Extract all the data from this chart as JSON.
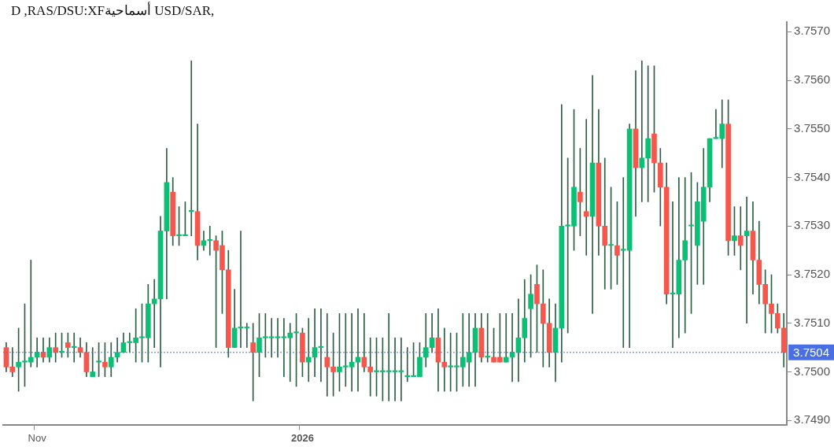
{
  "chart_data": {
    "type": "candlestick",
    "title": "D ,RAS/DSU:XFأسماحية USD/SAR,",
    "categories": [
      null,
      null,
      null,
      null,
      null,
      "Nov",
      null,
      null,
      null,
      null,
      null,
      null,
      null,
      null,
      null,
      null,
      null,
      null,
      null,
      null,
      null,
      null,
      null,
      null,
      null,
      null,
      null,
      null,
      null,
      null,
      null,
      null,
      null,
      null,
      null,
      null,
      null,
      null,
      null,
      null,
      null,
      null,
      null,
      null,
      null,
      null,
      null,
      null,
      "2026",
      null,
      null,
      null,
      null,
      null,
      null,
      null,
      null,
      null,
      null,
      null,
      null,
      null,
      null,
      null,
      null,
      null,
      null,
      null,
      null,
      null,
      null,
      null,
      null,
      null,
      null,
      null,
      null,
      null,
      null,
      null,
      null,
      null,
      null,
      null,
      null,
      null,
      null,
      null,
      null,
      null,
      null,
      null,
      null,
      null,
      null,
      null,
      null,
      null,
      null,
      null,
      null,
      null,
      null,
      null,
      null,
      null,
      null,
      null,
      null,
      null,
      null,
      null,
      null,
      null,
      null,
      null,
      null,
      null,
      null,
      null,
      null,
      null,
      null,
      null,
      null,
      null,
      null
    ],
    "ohlc": [
      [
        3.7505,
        3.7506,
        3.75,
        3.7501
      ],
      [
        3.7501,
        3.7505,
        3.7499,
        3.75
      ],
      [
        3.7501,
        3.7509,
        3.7496,
        3.7502
      ],
      [
        3.7502,
        3.7514,
        3.7497,
        3.7502
      ],
      [
        3.7502,
        3.7523,
        3.7501,
        3.7503
      ],
      [
        3.7503,
        3.7507,
        3.7501,
        3.7504
      ],
      [
        3.7504,
        3.7507,
        3.7502,
        3.7503
      ],
      [
        3.7503,
        3.7507,
        3.7502,
        3.7505
      ],
      [
        3.7505,
        3.7508,
        3.7502,
        3.7504
      ],
      [
        3.7504,
        3.7508,
        3.7503,
        3.7504
      ],
      [
        3.7506,
        3.7508,
        3.7503,
        3.7505
      ],
      [
        3.7505,
        3.7508,
        3.7502,
        3.7505
      ],
      [
        3.7505,
        3.7507,
        3.7503,
        3.7504
      ],
      [
        3.7504,
        3.7506,
        3.7499,
        3.75
      ],
      [
        3.7499,
        3.7505,
        3.7499,
        3.75
      ],
      [
        3.7502,
        3.7506,
        3.7499,
        3.7502
      ],
      [
        3.7502,
        3.7506,
        3.7499,
        3.7501
      ],
      [
        3.7501,
        3.7506,
        3.7499,
        3.7503
      ],
      [
        3.7503,
        3.7507,
        3.7502,
        3.7504
      ],
      [
        3.7504,
        3.7508,
        3.7504,
        3.7506
      ],
      [
        3.7506,
        3.7508,
        3.7504,
        3.7506
      ],
      [
        3.7506,
        3.7513,
        3.7502,
        3.7507
      ],
      [
        3.7507,
        3.7514,
        3.7502,
        3.7507
      ],
      [
        3.7507,
        3.7518,
        3.7502,
        3.7514
      ],
      [
        3.7514,
        3.7519,
        3.7505,
        3.7515
      ],
      [
        3.7515,
        3.7532,
        3.7501,
        3.7529
      ],
      [
        3.7529,
        3.7546,
        3.7515,
        3.7539
      ],
      [
        3.7537,
        3.754,
        3.7526,
        3.7528
      ],
      [
        3.7528,
        3.7534,
        3.7526,
        3.7528
      ],
      [
        3.7528,
        3.7535,
        3.7528,
        3.7528
      ],
      [
        3.7533,
        3.7564,
        3.7528,
        3.7533
      ],
      [
        3.7533,
        3.7551,
        3.7523,
        3.7526
      ],
      [
        3.7526,
        3.7529,
        3.7525,
        3.7527
      ],
      [
        3.7527,
        3.753,
        3.7524,
        3.7527
      ],
      [
        3.7527,
        3.7528,
        3.7505,
        3.7525
      ],
      [
        3.7526,
        3.7529,
        3.7512,
        3.7521
      ],
      [
        3.7521,
        3.7525,
        3.7503,
        3.7505
      ],
      [
        3.7505,
        3.7517,
        3.7505,
        3.7509
      ],
      [
        3.7509,
        3.7529,
        3.7505,
        3.7509
      ],
      [
        3.7509,
        3.751,
        3.7505,
        3.7509
      ],
      [
        3.7506,
        3.751,
        3.7494,
        3.7504
      ],
      [
        3.7504,
        3.7512,
        3.7499,
        3.7507
      ],
      [
        3.7507,
        3.7512,
        3.7503,
        3.7507
      ],
      [
        3.7507,
        3.7511,
        3.7503,
        3.7507
      ],
      [
        3.7507,
        3.7511,
        3.7503,
        3.7507
      ],
      [
        3.7507,
        3.7511,
        3.7499,
        3.7507
      ],
      [
        3.7507,
        3.751,
        3.7498,
        3.7508
      ],
      [
        3.7508,
        3.7512,
        3.7497,
        3.7508
      ],
      [
        3.7508,
        3.7509,
        3.7499,
        3.7502
      ],
      [
        3.7502,
        3.7511,
        3.7498,
        3.7503
      ],
      [
        3.7503,
        3.7513,
        3.7499,
        3.7505
      ],
      [
        3.7505,
        3.7513,
        3.7498,
        3.7505
      ],
      [
        3.7503,
        3.7512,
        3.7495,
        3.7501
      ],
      [
        3.7501,
        3.7508,
        3.7495,
        3.75
      ],
      [
        3.75,
        3.7512,
        3.7496,
        3.7501
      ],
      [
        3.7501,
        3.7512,
        3.7497,
        3.7501
      ],
      [
        3.7501,
        3.7512,
        3.7496,
        3.7502
      ],
      [
        3.7502,
        3.7513,
        3.7496,
        3.7503
      ],
      [
        3.7503,
        3.7512,
        3.75,
        3.7501
      ],
      [
        3.7501,
        3.7507,
        3.7495,
        3.75
      ],
      [
        3.75,
        3.7507,
        3.7495,
        3.75
      ],
      [
        3.75,
        3.7507,
        3.7494,
        3.75
      ],
      [
        3.75,
        3.7512,
        3.7494,
        3.75
      ],
      [
        3.75,
        3.7507,
        3.7494,
        3.75
      ],
      [
        3.75,
        3.7507,
        3.7494,
        3.75
      ],
      [
        3.7499,
        3.7505,
        3.7498,
        3.7499
      ],
      [
        3.7499,
        3.7506,
        3.7499,
        3.7499
      ],
      [
        3.7499,
        3.7506,
        3.7499,
        3.7503
      ],
      [
        3.7503,
        3.7512,
        3.7501,
        3.7505
      ],
      [
        3.7505,
        3.7512,
        3.7504,
        3.7507
      ],
      [
        3.7507,
        3.7513,
        3.7496,
        3.7502
      ],
      [
        3.7502,
        3.7509,
        3.7496,
        3.7501
      ],
      [
        3.7501,
        3.7508,
        3.7496,
        3.7501
      ],
      [
        3.7501,
        3.7508,
        3.7496,
        3.7501
      ],
      [
        3.7501,
        3.7512,
        3.7497,
        3.7503
      ],
      [
        3.7502,
        3.7512,
        3.7497,
        3.7504
      ],
      [
        3.7504,
        3.7512,
        3.7497,
        3.7509
      ],
      [
        3.7509,
        3.7512,
        3.7502,
        3.7503
      ],
      [
        3.7503,
        3.7512,
        3.7502,
        3.7503
      ],
      [
        3.7503,
        3.7509,
        3.7502,
        3.7502
      ],
      [
        3.7503,
        3.7512,
        3.7502,
        3.7502
      ],
      [
        3.7502,
        3.7512,
        3.7502,
        3.7503
      ],
      [
        3.7503,
        3.7512,
        3.7498,
        3.7504
      ],
      [
        3.7504,
        3.7515,
        3.7498,
        3.7507
      ],
      [
        3.7507,
        3.7519,
        3.7502,
        3.7511
      ],
      [
        3.7513,
        3.752,
        3.7503,
        3.7516
      ],
      [
        3.7518,
        3.7522,
        3.7504,
        3.7514
      ],
      [
        3.7514,
        3.7521,
        3.7501,
        3.751
      ],
      [
        3.751,
        3.7515,
        3.7501,
        3.7504
      ],
      [
        3.7504,
        3.7514,
        3.7498,
        3.7509
      ],
      [
        3.7509,
        3.7555,
        3.7502,
        3.753
      ],
      [
        3.753,
        3.7544,
        3.7508,
        3.753
      ],
      [
        3.753,
        3.7554,
        3.7525,
        3.7538
      ],
      [
        3.7537,
        3.7546,
        3.7528,
        3.7535
      ],
      [
        3.7533,
        3.7552,
        3.7524,
        3.7532
      ],
      [
        3.7532,
        3.7561,
        3.7512,
        3.7543
      ],
      [
        3.7543,
        3.7554,
        3.7524,
        3.753
      ],
      [
        3.753,
        3.7544,
        3.7517,
        3.7526
      ],
      [
        3.7526,
        3.7538,
        3.7517,
        3.7526
      ],
      [
        3.7526,
        3.7535,
        3.7518,
        3.7524
      ],
      [
        3.7525,
        3.754,
        3.7505,
        3.7525
      ],
      [
        3.7525,
        3.7551,
        3.7505,
        3.755
      ],
      [
        3.755,
        3.7562,
        3.7532,
        3.7542
      ],
      [
        3.7542,
        3.7564,
        3.7535,
        3.7544
      ],
      [
        3.7544,
        3.7563,
        3.7535,
        3.7548
      ],
      [
        3.7549,
        3.7563,
        3.7537,
        3.7543
      ],
      [
        3.7543,
        3.7546,
        3.753,
        3.7538
      ],
      [
        3.7538,
        3.7543,
        3.7514,
        3.7516
      ],
      [
        3.7516,
        3.7535,
        3.7505,
        3.7516
      ],
      [
        3.7516,
        3.754,
        3.7507,
        3.7523
      ],
      [
        3.7523,
        3.754,
        3.7508,
        3.7527
      ],
      [
        3.753,
        3.7541,
        3.7512,
        3.753
      ],
      [
        3.7526,
        3.7539,
        3.7518,
        3.7535
      ],
      [
        3.7531,
        3.7546,
        3.7518,
        3.7538
      ],
      [
        3.7538,
        3.7548,
        3.7535,
        3.7548
      ],
      [
        3.7548,
        3.7554,
        3.7548,
        3.7548
      ],
      [
        3.7548,
        3.7556,
        3.7542,
        3.7551
      ],
      [
        3.7551,
        3.7556,
        3.7524,
        3.7527
      ],
      [
        3.7527,
        3.7534,
        3.7524,
        3.7528
      ],
      [
        3.7528,
        3.7534,
        3.7521,
        3.7526
      ],
      [
        3.7528,
        3.7536,
        3.751,
        3.7529
      ],
      [
        3.7529,
        3.7535,
        3.7516,
        3.7523
      ],
      [
        3.7523,
        3.7531,
        3.7514,
        3.7518
      ],
      [
        3.7518,
        3.7521,
        3.7508,
        3.7514
      ],
      [
        3.7514,
        3.752,
        3.7508,
        3.7512
      ],
      [
        3.7512,
        3.7514,
        3.7508,
        3.7509
      ],
      [
        3.7509,
        3.7512,
        3.7501,
        3.7504
      ]
    ],
    "colors": [
      "#f6574d",
      "#f6574d",
      "#0bbf75",
      "#0bbf75",
      "#0bbf75",
      "#0bbf75",
      "#f6574d",
      "#0bbf75",
      "#f6574d",
      "#0bbf75",
      "#f6574d",
      "#0bbf75",
      "#f6574d",
      "#f6574d",
      "#0bbf75",
      "#0bbf75",
      "#f6574d",
      "#0bbf75",
      "#0bbf75",
      "#0bbf75",
      "#0bbf75",
      "#0bbf75",
      "#0bbf75",
      "#0bbf75",
      "#0bbf75",
      "#0bbf75",
      "#0bbf75",
      "#f6574d",
      "#0bbf75",
      "#0bbf75",
      "#0bbf75",
      "#f6574d",
      "#0bbf75",
      "#0bbf75",
      "#f6574d",
      "#f6574d",
      "#f6574d",
      "#0bbf75",
      "#0bbf75",
      "#0bbf75",
      "#f6574d",
      "#0bbf75",
      "#0bbf75",
      "#0bbf75",
      "#0bbf75",
      "#0bbf75",
      "#0bbf75",
      "#0bbf75",
      "#f6574d",
      "#0bbf75",
      "#0bbf75",
      "#0bbf75",
      "#f6574d",
      "#f6574d",
      "#0bbf75",
      "#0bbf75",
      "#0bbf75",
      "#0bbf75",
      "#f6574d",
      "#f6574d",
      "#0bbf75",
      "#0bbf75",
      "#0bbf75",
      "#0bbf75",
      "#0bbf75",
      "#0bbf75",
      "#0bbf75",
      "#0bbf75",
      "#0bbf75",
      "#0bbf75",
      "#f6574d",
      "#f6574d",
      "#0bbf75",
      "#0bbf75",
      "#0bbf75",
      "#0bbf75",
      "#0bbf75",
      "#f6574d",
      "#0bbf75",
      "#f6574d",
      "#f6574d",
      "#0bbf75",
      "#0bbf75",
      "#0bbf75",
      "#0bbf75",
      "#0bbf75",
      "#f6574d",
      "#f6574d",
      "#f6574d",
      "#0bbf75",
      "#0bbf75",
      "#0bbf75",
      "#0bbf75",
      "#f6574d",
      "#f6574d",
      "#0bbf75",
      "#f6574d",
      "#f6574d",
      "#0bbf75",
      "#f6574d",
      "#0bbf75",
      "#0bbf75",
      "#f6574d",
      "#0bbf75",
      "#0bbf75",
      "#f6574d",
      "#f6574d",
      "#f6574d",
      "#0bbf75",
      "#0bbf75",
      "#0bbf75",
      "#0bbf75",
      "#0bbf75",
      "#0bbf75",
      "#0bbf75",
      "#0bbf75",
      "#0bbf75",
      "#f6574d",
      "#0bbf75",
      "#f6574d",
      "#0bbf75",
      "#f6574d",
      "#f6574d",
      "#f6574d",
      "#f6574d",
      "#f6574d",
      "#f6574d"
    ],
    "ylim": [
      3.7489,
      3.7572
    ],
    "yticks": [
      {
        "value": 3.749,
        "label": "3.7490"
      },
      {
        "value": 3.75,
        "label": "3.7500"
      },
      {
        "value": 3.751,
        "label": "3.7510"
      },
      {
        "value": 3.752,
        "label": "3.7520"
      },
      {
        "value": 3.753,
        "label": "3.7530"
      },
      {
        "value": 3.754,
        "label": "3.7540"
      },
      {
        "value": 3.755,
        "label": "3.7550"
      },
      {
        "value": 3.756,
        "label": "3.7560"
      },
      {
        "value": 3.757,
        "label": "3.7570"
      }
    ],
    "ref_lines": [
      {
        "axis": "y",
        "value": 3.7504,
        "label": "3.7504",
        "color": "#4a6fe3",
        "line_style": "dotted"
      }
    ],
    "grid": false,
    "legend": false
  }
}
